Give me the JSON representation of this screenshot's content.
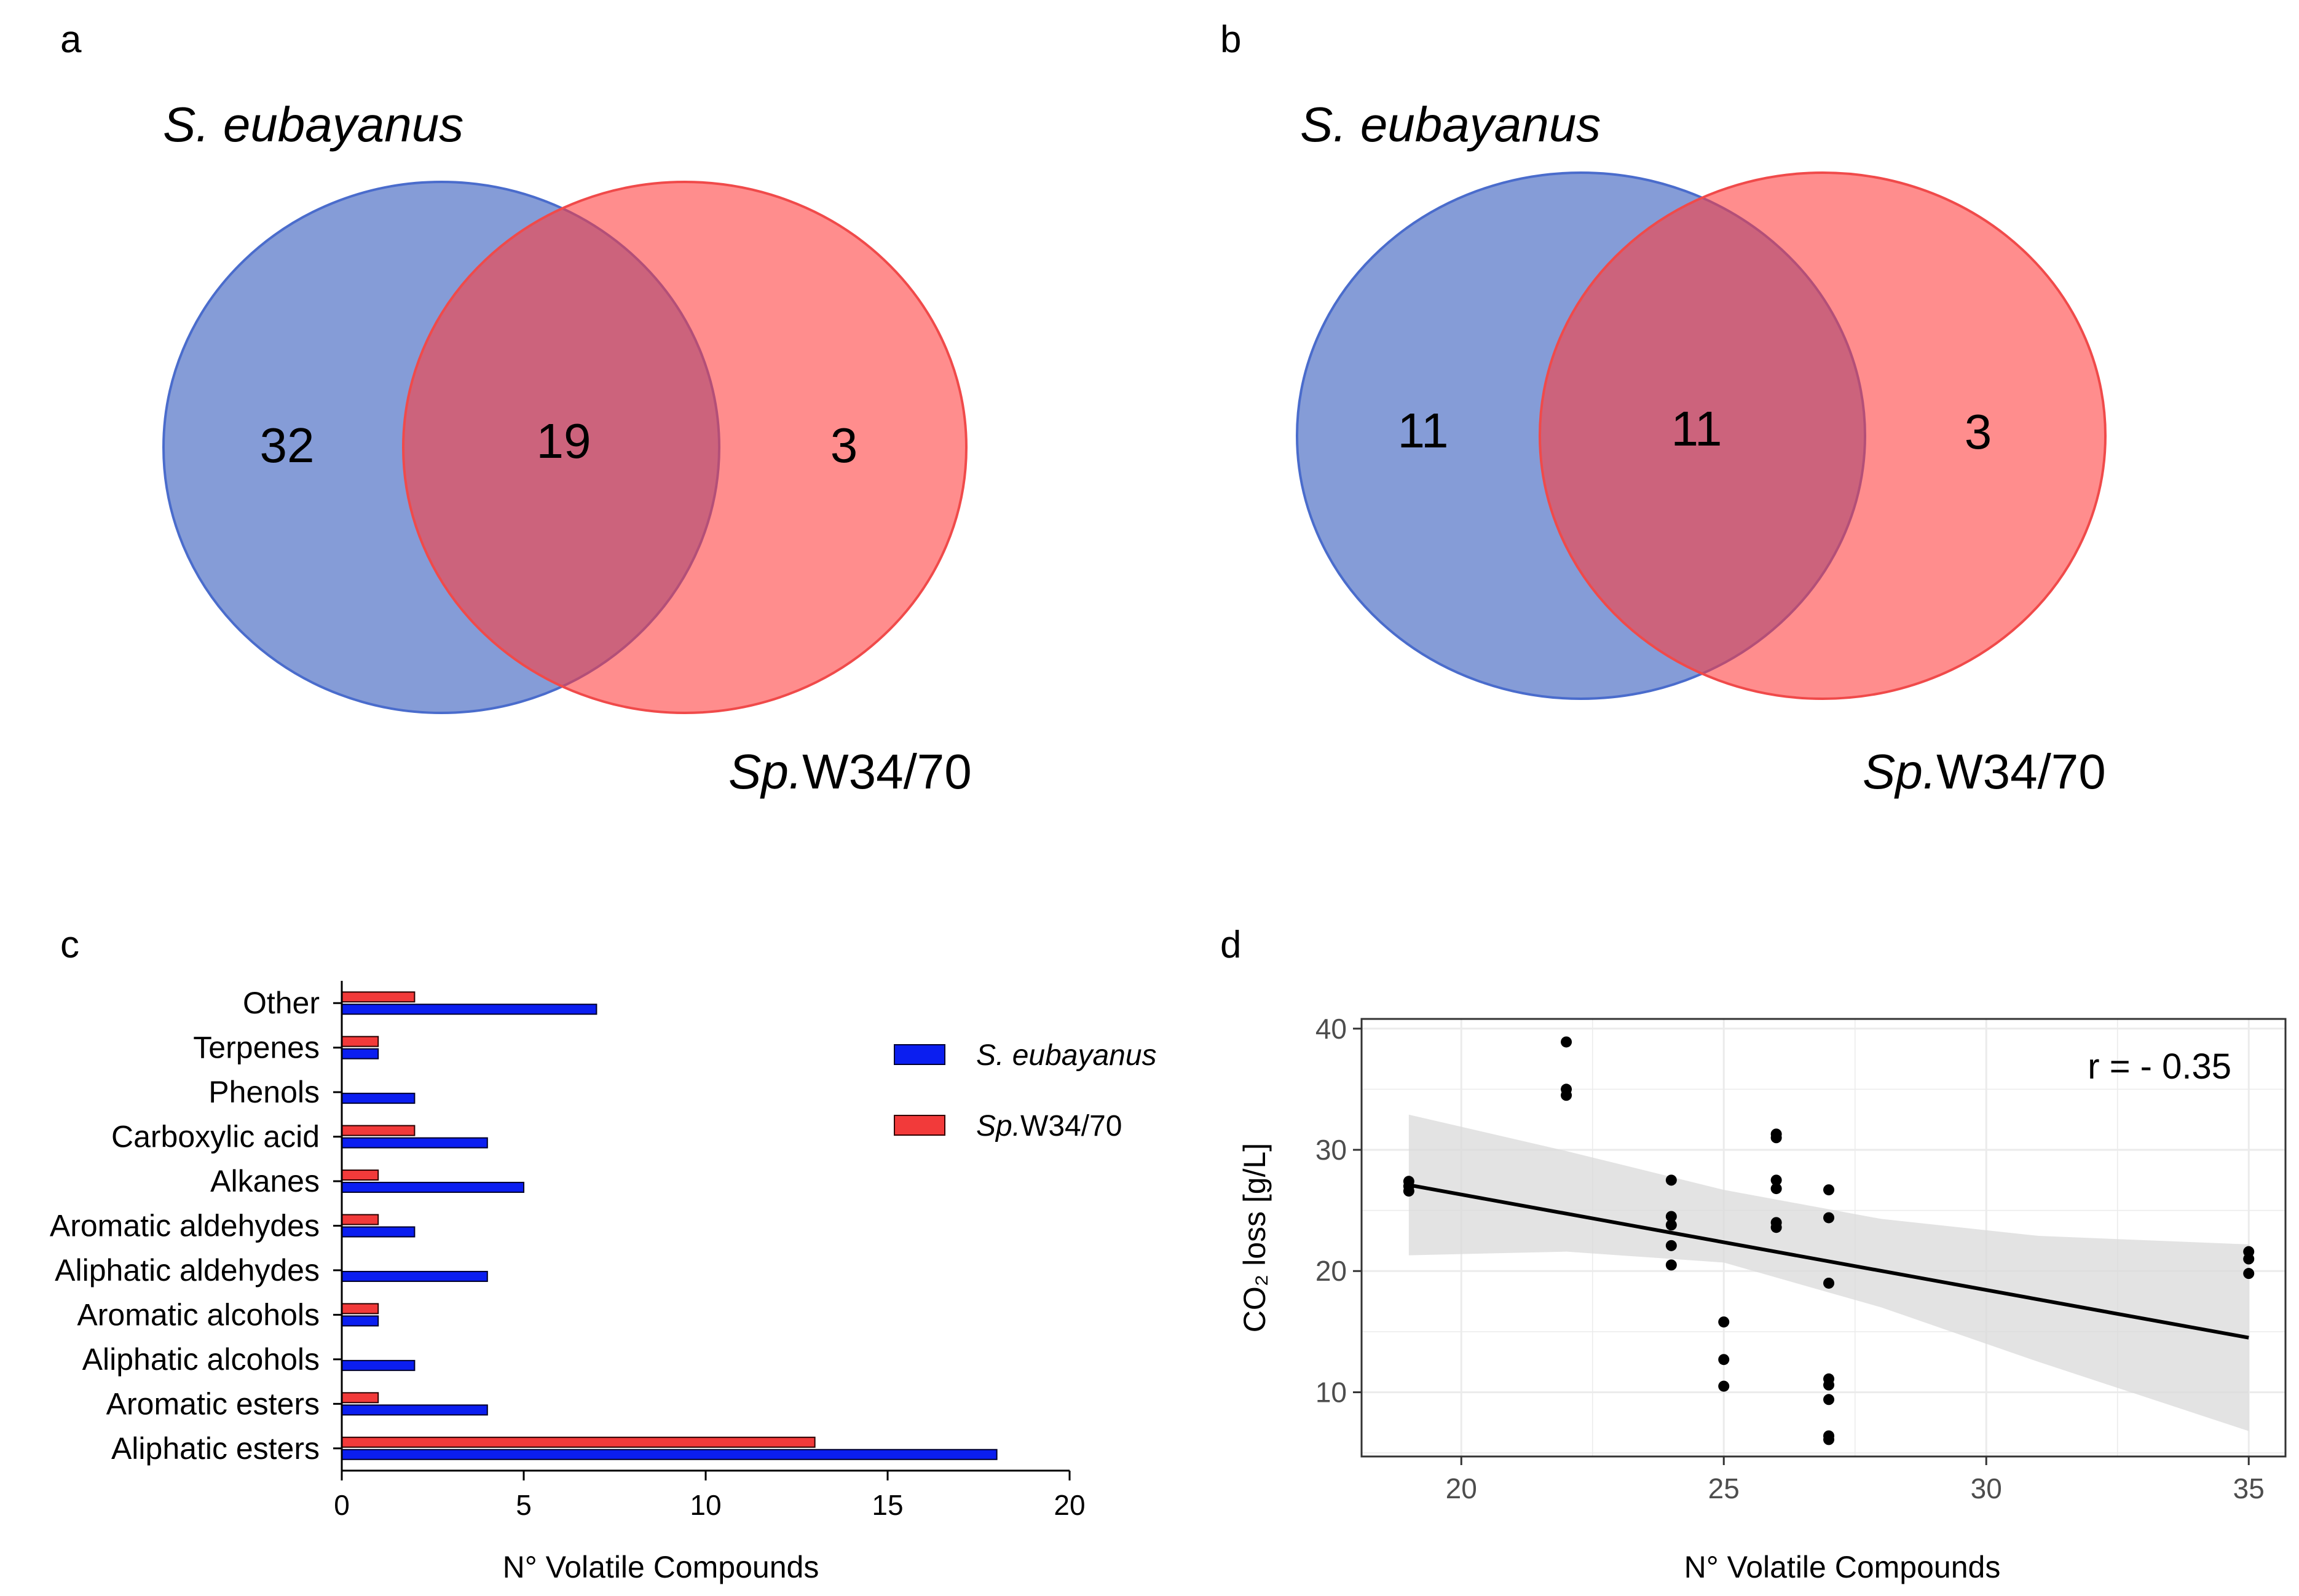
{
  "panels": {
    "a": "a",
    "b": "b",
    "c": "c",
    "d": "d"
  },
  "colors": {
    "blue_fill": "#3a5fbf",
    "blue_stroke": "#4a6ccc",
    "red_fill": "#ff3b3b",
    "red_stroke": "#f04a4a",
    "bar_blue": "#0b1ef0",
    "bar_red": "#f23a3a",
    "ribbon": "#d9d9d9",
    "grid": "#ebebeb"
  },
  "chart_data": [
    {
      "type": "venn",
      "panel": "a",
      "title": "S. eubayanus",
      "set_labels": {
        "left": "S. eubayanus",
        "right_italic": "Sp.",
        "right_rest": "W34/70"
      },
      "counts": {
        "left_only": "32",
        "both": "19",
        "right_only": "3"
      }
    },
    {
      "type": "venn",
      "panel": "b",
      "title": "S. eubayanus",
      "set_labels": {
        "left": "S. eubayanus",
        "right_italic": "Sp.",
        "right_rest": "W34/70"
      },
      "counts": {
        "left_only": "11",
        "both": "11",
        "right_only": "3"
      }
    },
    {
      "type": "bar",
      "panel": "c",
      "orientation": "horizontal",
      "categories": [
        "Aliphatic esters",
        "Aromatic esters",
        "Aliphatic alcohols",
        "Aromatic alcohols",
        "Aliphatic aldehydes",
        "Aromatic aldehydes",
        "Alkanes",
        "Carboxylic acid",
        "Phenols",
        "Terpenes",
        "Other"
      ],
      "series": [
        {
          "name": "S. eubayanus",
          "values": [
            18,
            4,
            2,
            1,
            4,
            2,
            5,
            4,
            2,
            1,
            7
          ]
        },
        {
          "name": "Sp.W34/70",
          "name_italic": "Sp.",
          "name_rest": "W34/70",
          "values": [
            13,
            1,
            0,
            1,
            0,
            1,
            1,
            2,
            0,
            1,
            2
          ]
        }
      ],
      "xlabel": "N° Volatile Compounds",
      "xlim": [
        0,
        20
      ],
      "xticks": [
        "0",
        "5",
        "10",
        "15",
        "20"
      ]
    },
    {
      "type": "scatter",
      "panel": "d",
      "xlabel": "N° Volatile Compounds",
      "ylabel": "CO₂ loss [g/L]",
      "xlim": [
        18.1,
        35.7
      ],
      "ylim": [
        4.7,
        40.8
      ],
      "xticks": [
        "20",
        "25",
        "30",
        "35"
      ],
      "yticks": [
        "10",
        "20",
        "30",
        "40"
      ],
      "annotation": "r = - 0.35",
      "points": [
        [
          19,
          27.4
        ],
        [
          19,
          27.0
        ],
        [
          19,
          26.6
        ],
        [
          22,
          38.9
        ],
        [
          22,
          35.0
        ],
        [
          22,
          34.5
        ],
        [
          24,
          27.5
        ],
        [
          24,
          24.5
        ],
        [
          24,
          23.8
        ],
        [
          24,
          22.1
        ],
        [
          24,
          20.5
        ],
        [
          25,
          15.8
        ],
        [
          25,
          12.7
        ],
        [
          25,
          10.5
        ],
        [
          26,
          31.3
        ],
        [
          26,
          31.0
        ],
        [
          26,
          27.5
        ],
        [
          26,
          26.8
        ],
        [
          26,
          24.0
        ],
        [
          26,
          23.6
        ],
        [
          27,
          26.7
        ],
        [
          27,
          24.4
        ],
        [
          27,
          19.0
        ],
        [
          27,
          11.1
        ],
        [
          27,
          10.6
        ],
        [
          27,
          9.4
        ],
        [
          27,
          6.4
        ],
        [
          27,
          6.1
        ],
        [
          35,
          21.6
        ],
        [
          35,
          21.0
        ],
        [
          35,
          19.8
        ]
      ],
      "regression": {
        "x0": 19,
        "y0": 27.1,
        "x1": 35,
        "y1": 14.5
      },
      "ribbon_upper": [
        [
          19,
          32.9
        ],
        [
          22,
          29.9
        ],
        [
          25,
          26.7
        ],
        [
          28,
          24.3
        ],
        [
          31,
          22.9
        ],
        [
          35,
          22.2
        ]
      ],
      "ribbon_lower": [
        [
          19,
          21.3
        ],
        [
          22,
          21.6
        ],
        [
          25,
          20.7
        ],
        [
          28,
          17.0
        ],
        [
          31,
          12.5
        ],
        [
          35,
          6.8
        ]
      ]
    }
  ]
}
